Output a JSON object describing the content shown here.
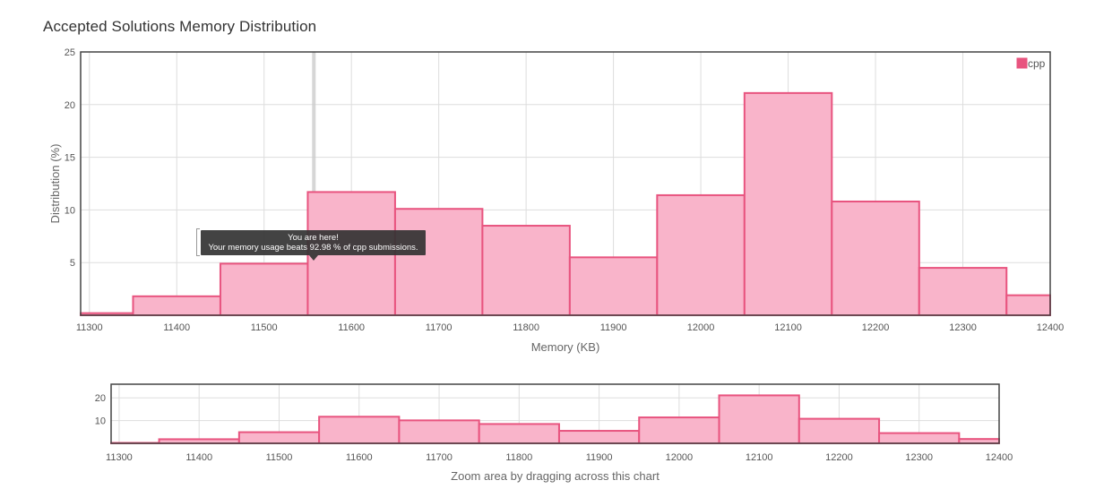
{
  "title": "Accepted Solutions Memory Distribution",
  "tooltip": {
    "line1": "You are here!",
    "line2": "Your memory usage beats 92.98 % of cpp submissions."
  },
  "colors": {
    "bar_fill": "#f9b4ca",
    "bar_stroke": "#e8547f",
    "legend_swatch": "#e8547f",
    "grid": "#dddddd",
    "frame": "#444444",
    "marker": "#cccccc"
  },
  "chart_data": [
    {
      "type": "bar",
      "name": "main",
      "xlabel": "Memory (KB)",
      "ylabel": "Distribution (%)",
      "xlim": [
        11290,
        12400
      ],
      "ylim": [
        0,
        25
      ],
      "x_ticks": [
        11300,
        11400,
        11500,
        11600,
        11700,
        11800,
        11900,
        12000,
        12100,
        12200,
        12300,
        12400
      ],
      "y_ticks": [
        5,
        10,
        15,
        20,
        25
      ],
      "grid": true,
      "legend_position": "top-right",
      "marker_x": 11557,
      "series": [
        {
          "name": "cpp",
          "bins": [
            {
              "start": 11290,
              "end": 11350,
              "value": 0.2
            },
            {
              "start": 11350,
              "end": 11450,
              "value": 1.8
            },
            {
              "start": 11450,
              "end": 11550,
              "value": 4.9
            },
            {
              "start": 11550,
              "end": 11650,
              "value": 11.7
            },
            {
              "start": 11650,
              "end": 11750,
              "value": 10.1
            },
            {
              "start": 11750,
              "end": 11850,
              "value": 8.5
            },
            {
              "start": 11850,
              "end": 11950,
              "value": 5.5
            },
            {
              "start": 11950,
              "end": 12050,
              "value": 11.4
            },
            {
              "start": 12050,
              "end": 12150,
              "value": 21.1
            },
            {
              "start": 12150,
              "end": 12250,
              "value": 10.8
            },
            {
              "start": 12250,
              "end": 12350,
              "value": 4.5
            },
            {
              "start": 12350,
              "end": 12400,
              "value": 1.9
            }
          ]
        }
      ]
    },
    {
      "type": "bar",
      "name": "navigator",
      "xlabel": "Zoom area by dragging across this chart",
      "xlim": [
        11290,
        12400
      ],
      "ylim": [
        0,
        26
      ],
      "x_ticks": [
        11300,
        11400,
        11500,
        11600,
        11700,
        11800,
        11900,
        12000,
        12100,
        12200,
        12300,
        12400
      ],
      "y_ticks": [
        10,
        20
      ],
      "grid": true,
      "series": [
        {
          "name": "cpp",
          "bins_ref": "main"
        }
      ]
    }
  ]
}
